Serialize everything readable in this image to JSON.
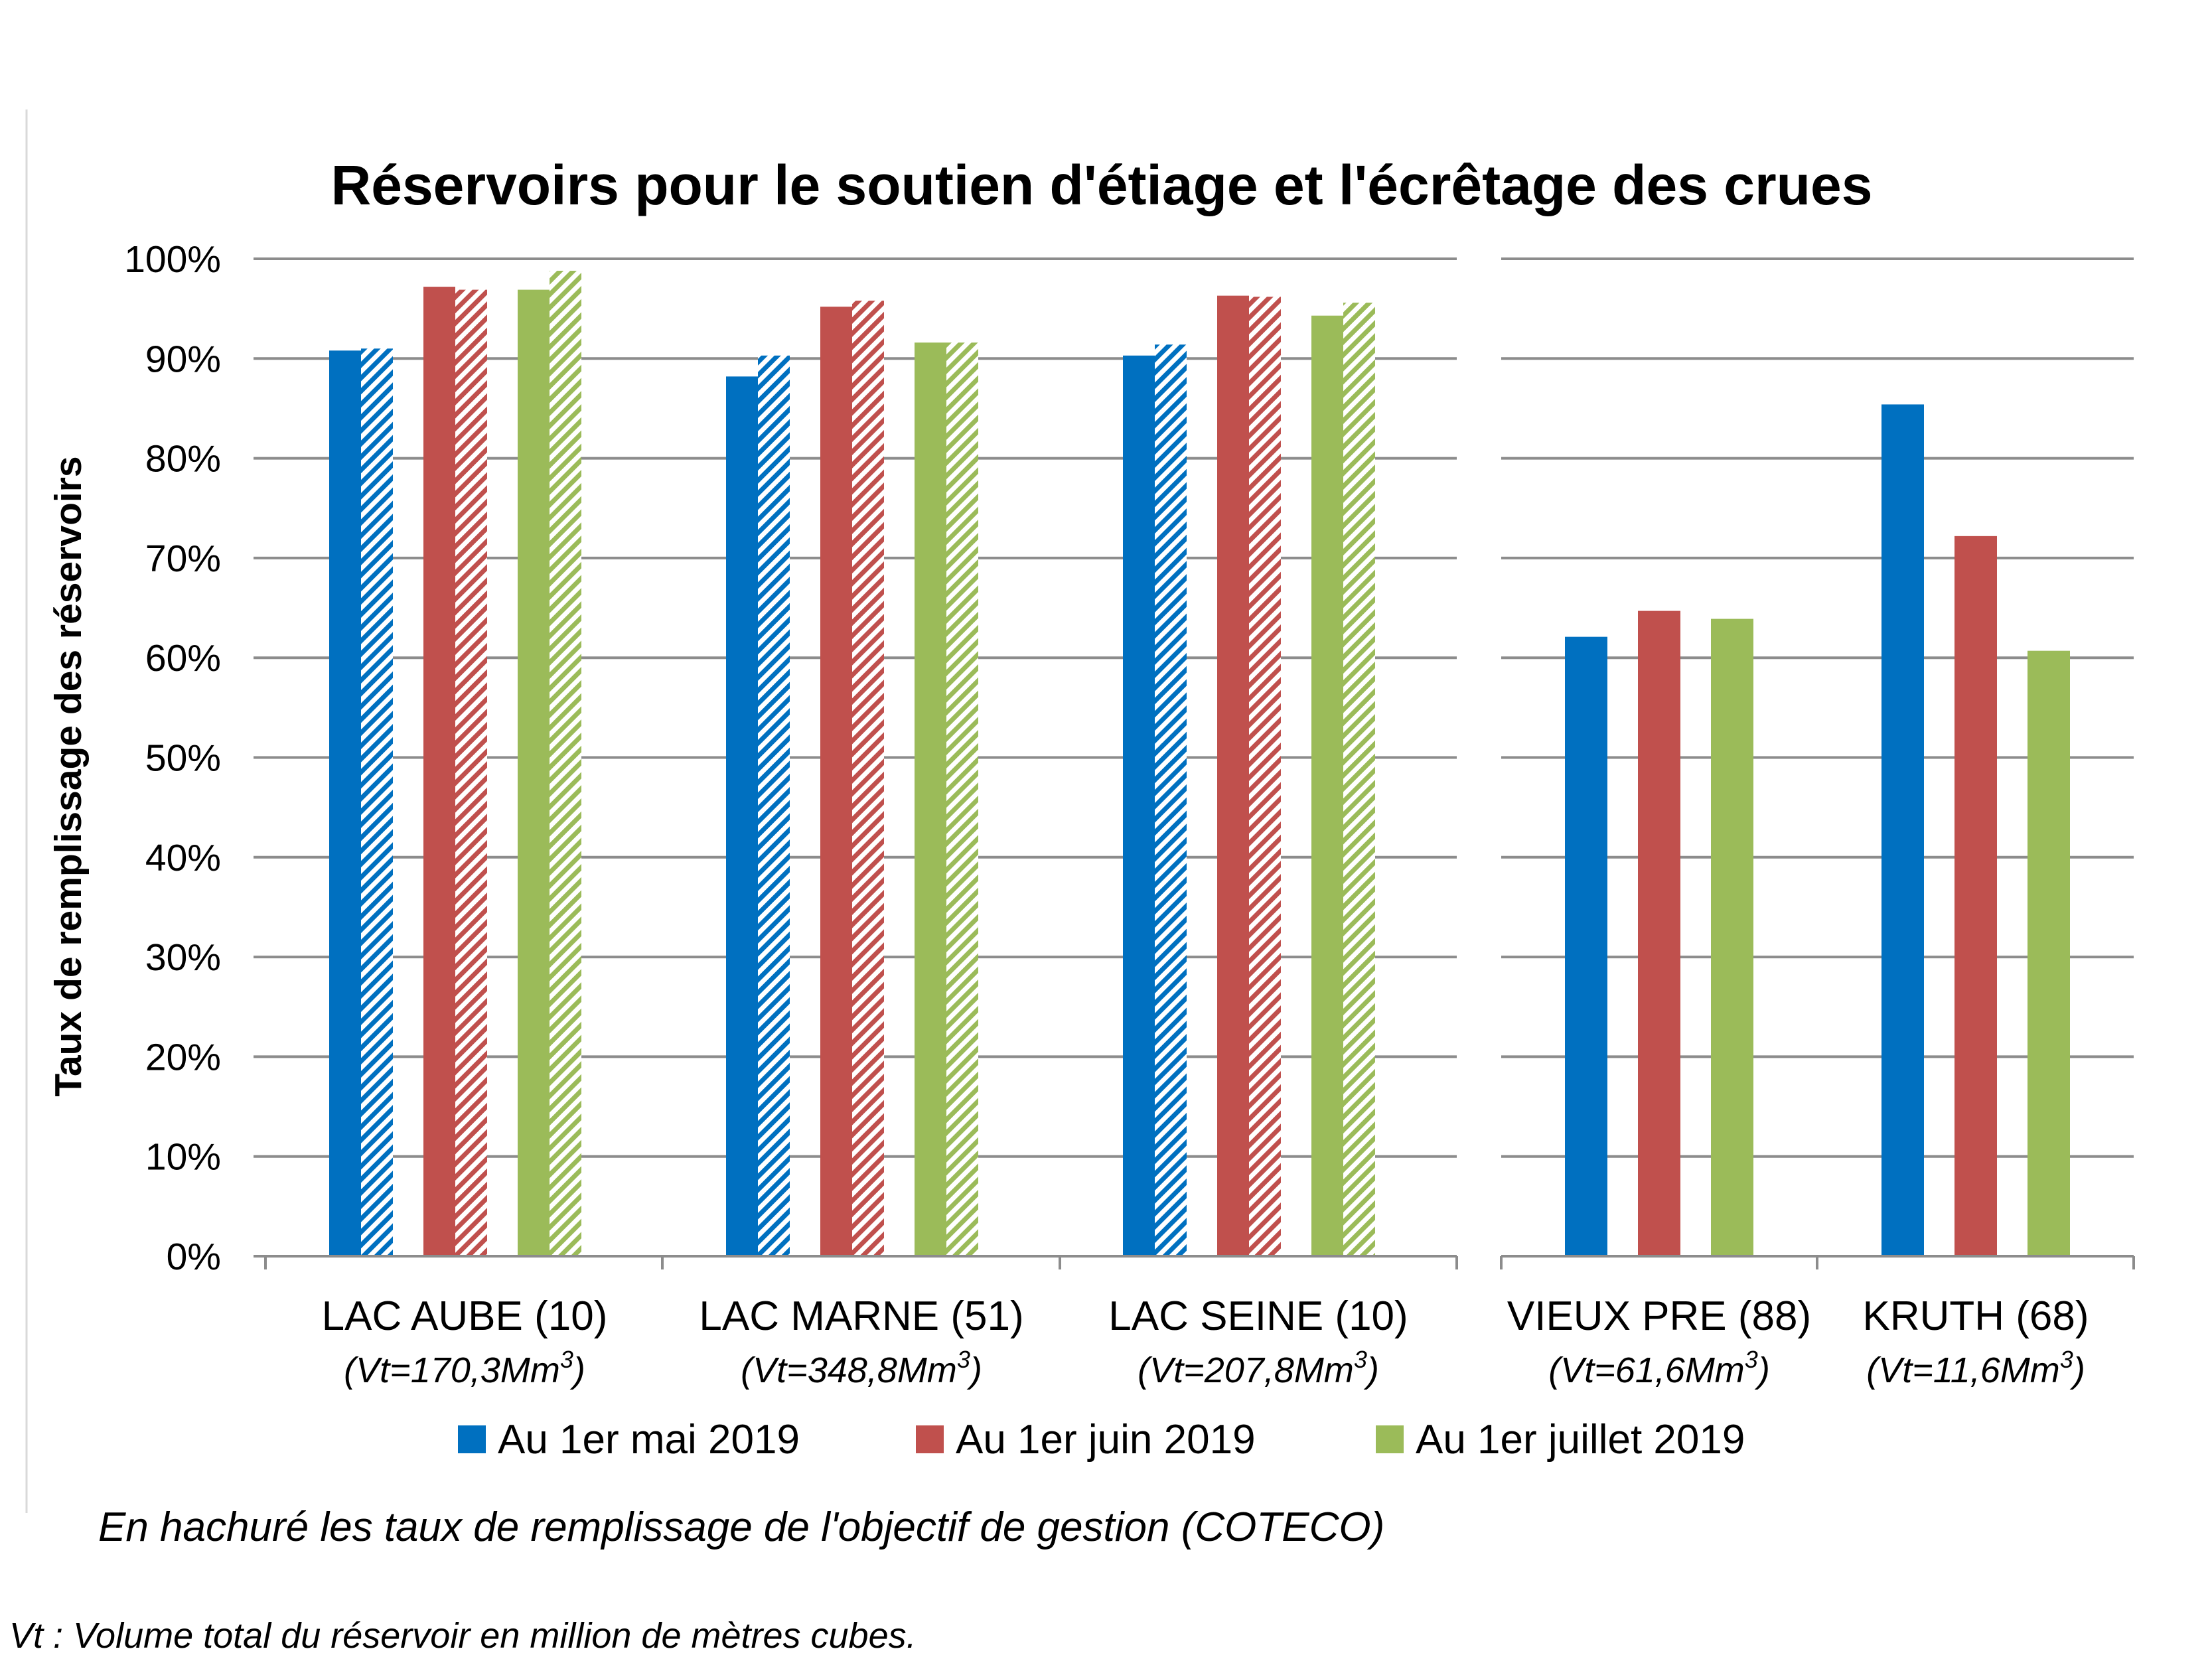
{
  "chart_data": {
    "type": "bar",
    "title": "Réservoirs pour le soutien d'étiage et l'écrêtage des crues",
    "ylabel": "Taux de remplissage des réservoirs",
    "xlabel": "",
    "ylim": [
      0,
      100
    ],
    "yticks": [
      "0%",
      "10%",
      "20%",
      "30%",
      "40%",
      "50%",
      "60%",
      "70%",
      "80%",
      "90%",
      "100%"
    ],
    "grid": true,
    "legend_position": "bottom",
    "categories": [
      {
        "name": "LAC AUBE (10)",
        "sub": "(Vt=170,3Mm",
        "sup": "3",
        "close": ")"
      },
      {
        "name": "LAC MARNE (51)",
        "sub": "(Vt=348,8Mm",
        "sup": "3",
        "close": ")"
      },
      {
        "name": "LAC SEINE (10)",
        "sub": "(Vt=207,8Mm",
        "sup": "3",
        "close": ")"
      },
      {
        "name": "VIEUX PRE (88)",
        "sub": "(Vt=61,6Mm",
        "sup": "3",
        "close": ")"
      },
      {
        "name": "KRUTH (68)",
        "sub": "(Vt=11,6Mm",
        "sup": "3",
        "close": ")"
      }
    ],
    "series": [
      {
        "name": "Au 1er mai 2019",
        "color": "#0070c0",
        "values": [
          90.8,
          88.2,
          90.3,
          62.1,
          85.4
        ],
        "objective": [
          91.0,
          90.3,
          91.4,
          null,
          null
        ]
      },
      {
        "name": "Au 1er juin 2019",
        "color": "#c0504d",
        "values": [
          97.2,
          95.2,
          96.3,
          64.7,
          72.2
        ],
        "objective": [
          96.9,
          95.8,
          96.2,
          null,
          null
        ]
      },
      {
        "name": "Au 1er juillet 2019",
        "color": "#9bbb59",
        "values": [
          96.9,
          91.6,
          94.3,
          63.9,
          60.7
        ],
        "objective": [
          98.8,
          91.6,
          95.6,
          null,
          null
        ]
      }
    ]
  },
  "notes": {
    "hatch_note": "En hachuré les taux de remplissage de l'objectif de gestion (COTECO)",
    "footnote": "Vt : Volume total du réservoir en million de mètres cubes."
  }
}
